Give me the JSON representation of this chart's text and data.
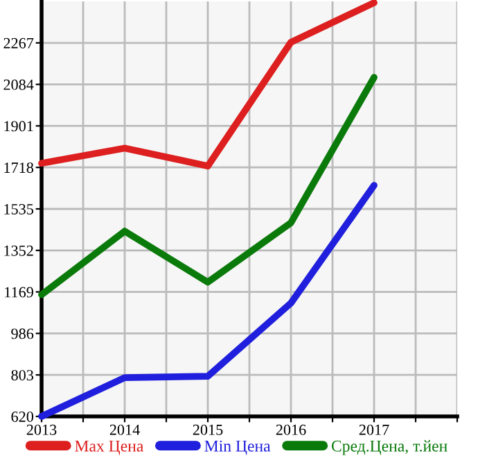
{
  "chart_data": {
    "type": "line",
    "x": [
      2013,
      2014,
      2015,
      2016,
      2017
    ],
    "series": [
      {
        "name": "Max Цена",
        "color": "#dd1f1f",
        "values": [
          1736,
          1803,
          1724,
          2270,
          2444
        ]
      },
      {
        "name": "Min Цена",
        "color": "#1f1fdd",
        "values": [
          620,
          791,
          797,
          1120,
          1639
        ]
      },
      {
        "name": "Сред.Цена, т.йен",
        "color": "#0a7a0a",
        "values": [
          1157,
          1437,
          1212,
          1474,
          2115
        ]
      }
    ],
    "xlim": [
      2013,
      2018
    ],
    "xticks": [
      2013,
      {
        "value": 2013.5,
        "label": null
      },
      2014,
      {
        "value": 2014.5,
        "label": null
      },
      2015,
      {
        "value": 2015.5,
        "label": null
      },
      2016,
      {
        "value": 2016.5,
        "label": null
      },
      2017,
      {
        "value": 2017.5,
        "label": null
      },
      {
        "value": 2018,
        "label": null
      }
    ],
    "ylim": [
      620,
      2450
    ],
    "yticks": [
      620,
      803,
      986,
      1169,
      1352,
      1535,
      1718,
      1901,
      2084,
      2267
    ],
    "grid": true,
    "legend": "bottom",
    "marker": "none",
    "line_style": "solid"
  }
}
